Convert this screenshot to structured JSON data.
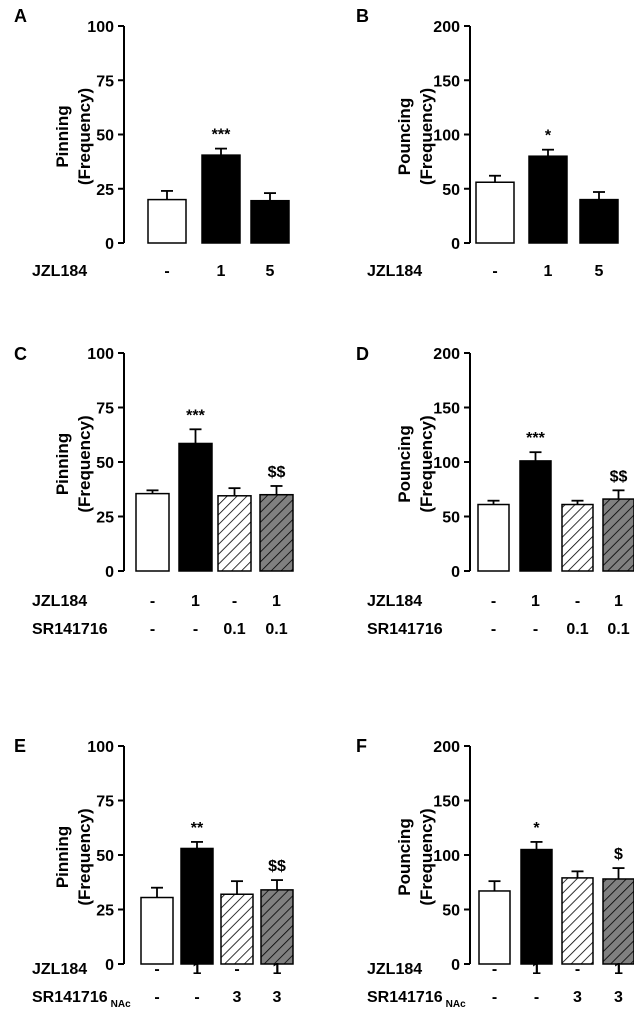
{
  "colors": {
    "control": "#ffffff",
    "jzl": "#000000",
    "sr_hatched": "#ffffff",
    "combo_hatched": "#808080",
    "axis": "#000000"
  },
  "chart_data": [
    {
      "panel": "A",
      "type": "bar",
      "ylabel": "Pinning",
      "ylabel2": "(Frequency)",
      "ylim": [
        0,
        100
      ],
      "yticks": [
        "0",
        "25",
        "50",
        "75",
        "100"
      ],
      "conditions": [
        {
          "label": "JZL184",
          "sub": "",
          "values": [
            "-",
            "1",
            "5"
          ]
        }
      ],
      "series": [
        {
          "values": [
            20,
            40.5,
            19.5
          ],
          "errors": [
            4,
            3,
            3.5
          ],
          "styles": [
            "white",
            "black",
            "black"
          ],
          "sig": [
            "",
            "***",
            ""
          ]
        }
      ]
    },
    {
      "panel": "B",
      "type": "bar",
      "ylabel": "Pouncing",
      "ylabel2": "(Frequency)",
      "ylim": [
        0,
        200
      ],
      "yticks": [
        "0",
        "50",
        "100",
        "150",
        "200"
      ],
      "conditions": [
        {
          "label": "JZL184",
          "sub": "",
          "values": [
            "-",
            "1",
            "5"
          ]
        }
      ],
      "series": [
        {
          "values": [
            56,
            80,
            40
          ],
          "errors": [
            6,
            6,
            7
          ],
          "styles": [
            "white",
            "black",
            "black"
          ],
          "sig": [
            "",
            "*",
            ""
          ]
        }
      ]
    },
    {
      "panel": "C",
      "type": "bar",
      "ylabel": "Pinning",
      "ylabel2": "(Frequency)",
      "ylim": [
        0,
        100
      ],
      "yticks": [
        "0",
        "25",
        "50",
        "75",
        "100"
      ],
      "conditions": [
        {
          "label": "JZL184",
          "sub": "",
          "values": [
            "-",
            "1",
            "-",
            "1"
          ]
        },
        {
          "label": "SR141716",
          "sub": "",
          "values": [
            "-",
            "-",
            "0.1",
            "0.1"
          ]
        }
      ],
      "series": [
        {
          "values": [
            35.5,
            58.5,
            34.5,
            35
          ],
          "errors": [
            1.5,
            6.5,
            3.5,
            4
          ],
          "styles": [
            "white",
            "black",
            "hatch-white",
            "hatch-gray"
          ],
          "sig": [
            "",
            "***",
            "",
            "$$"
          ]
        }
      ]
    },
    {
      "panel": "D",
      "type": "bar",
      "ylabel": "Pouncing",
      "ylabel2": "(Frequency)",
      "ylim": [
        0,
        200
      ],
      "yticks": [
        "0",
        "50",
        "100",
        "150",
        "200"
      ],
      "conditions": [
        {
          "label": "JZL184",
          "sub": "",
          "values": [
            "-",
            "1",
            "-",
            "1"
          ]
        },
        {
          "label": "SR141716",
          "sub": "",
          "values": [
            "-",
            "-",
            "0.1",
            "0.1"
          ]
        }
      ],
      "series": [
        {
          "values": [
            61,
            101,
            61,
            66
          ],
          "errors": [
            3.5,
            8,
            3.5,
            8
          ],
          "styles": [
            "white",
            "black",
            "hatch-white",
            "hatch-gray"
          ],
          "sig": [
            "",
            "***",
            "",
            "$$"
          ]
        }
      ]
    },
    {
      "panel": "E",
      "type": "bar",
      "ylabel": "Pinning",
      "ylabel2": "(Frequency)",
      "ylim": [
        0,
        100
      ],
      "yticks": [
        "0",
        "25",
        "50",
        "75",
        "100"
      ],
      "conditions": [
        {
          "label": "JZL184",
          "sub": "",
          "values": [
            "-",
            "1",
            "-",
            "1"
          ]
        },
        {
          "label": "SR141716",
          "sub": "NAc",
          "values": [
            "-",
            "-",
            "3",
            "3"
          ]
        }
      ],
      "series": [
        {
          "values": [
            30.5,
            53,
            32,
            34
          ],
          "errors": [
            4.5,
            3,
            6,
            4.5
          ],
          "styles": [
            "white",
            "black",
            "hatch-white",
            "hatch-gray"
          ],
          "sig": [
            "",
            "**",
            "",
            "$$"
          ]
        }
      ]
    },
    {
      "panel": "F",
      "type": "bar",
      "ylabel": "Pouncing",
      "ylabel2": "(Frequency)",
      "ylim": [
        0,
        200
      ],
      "yticks": [
        "0",
        "50",
        "100",
        "150",
        "200"
      ],
      "conditions": [
        {
          "label": "JZL184",
          "sub": "",
          "values": [
            "-",
            "1",
            "-",
            "1"
          ]
        },
        {
          "label": "SR141716",
          "sub": "NAc",
          "values": [
            "-",
            "-",
            "3",
            "3"
          ]
        }
      ],
      "series": [
        {
          "values": [
            67,
            105,
            79,
            78
          ],
          "errors": [
            9,
            7,
            6,
            10
          ],
          "styles": [
            "white",
            "black",
            "hatch-white",
            "hatch-gray"
          ],
          "sig": [
            "",
            "*",
            "",
            "$"
          ]
        }
      ]
    }
  ]
}
